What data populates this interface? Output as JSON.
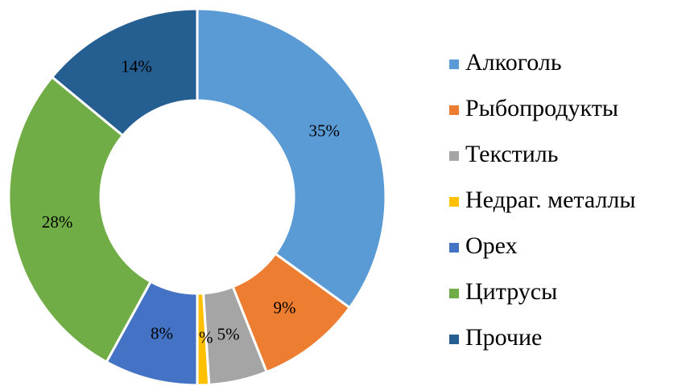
{
  "chart_data": {
    "type": "donut",
    "categories": [
      "Алкоголь",
      "Рыбопродукты",
      "Текстиль",
      "Недраг. металлы",
      "Орех",
      "Цитрусы",
      "Прочие"
    ],
    "values": [
      35,
      9,
      5,
      1,
      8,
      28,
      14
    ],
    "value_labels": [
      "35%",
      "9%",
      "5%",
      "1%",
      "8%",
      "28%",
      "14%"
    ],
    "colors": [
      "#5b9bd5",
      "#ed7d31",
      "#a5a5a5",
      "#ffc000",
      "#4472c4",
      "#70ad47",
      "#255e91"
    ],
    "legend": "right"
  }
}
